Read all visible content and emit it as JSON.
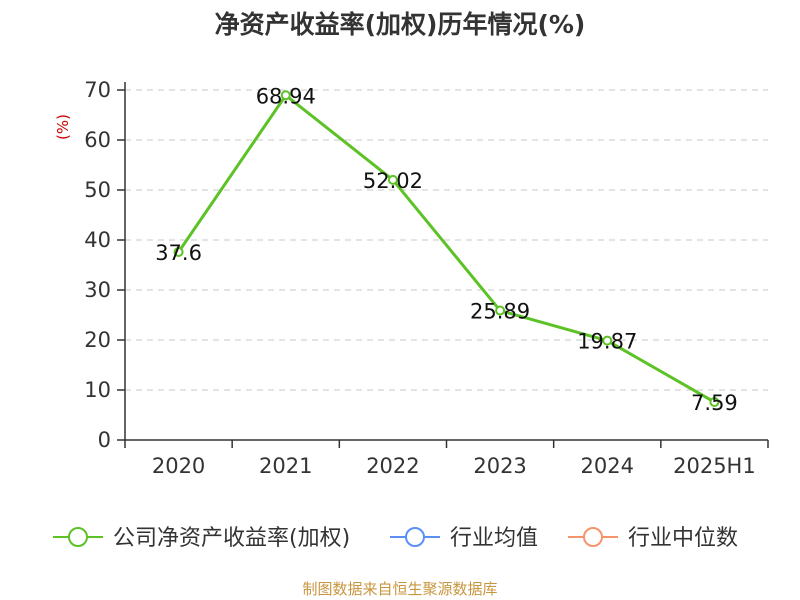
{
  "title": "净资产收益率(加权)历年情况(%)",
  "source_note": "制图数据来自恒生聚源数据库",
  "colors": {
    "series_primary": "#5cc226",
    "legend_avg": "#5b8ff9",
    "legend_median": "#f6956b",
    "ylabel": "#cc0000",
    "grid": "#c8c8c8",
    "axis": "#333333"
  },
  "chart_data": {
    "type": "line",
    "title": "净资产收益率(加权)历年情况(%)",
    "xlabel": "",
    "ylabel": "(%)",
    "categories": [
      "2020",
      "2021",
      "2022",
      "2023",
      "2024",
      "2025H1"
    ],
    "yticks": [
      "0",
      "10",
      "20",
      "30",
      "40",
      "50",
      "60",
      "70"
    ],
    "ylim": [
      0,
      70
    ],
    "grid": true,
    "legend_position": "bottom",
    "series": [
      {
        "name": "公司净资产收益率(加权)",
        "values": [
          37.6,
          68.94,
          52.02,
          25.89,
          19.87,
          7.59
        ],
        "labels": [
          "37.6",
          "68.94",
          "52.02",
          "25.89",
          "19.87",
          "7.59"
        ]
      }
    ],
    "legend": [
      {
        "label": "公司净资产收益率(加权)",
        "color": "#5cc226"
      },
      {
        "label": "行业均值",
        "color": "#5b8ff9"
      },
      {
        "label": "行业中位数",
        "color": "#f6956b"
      }
    ]
  }
}
